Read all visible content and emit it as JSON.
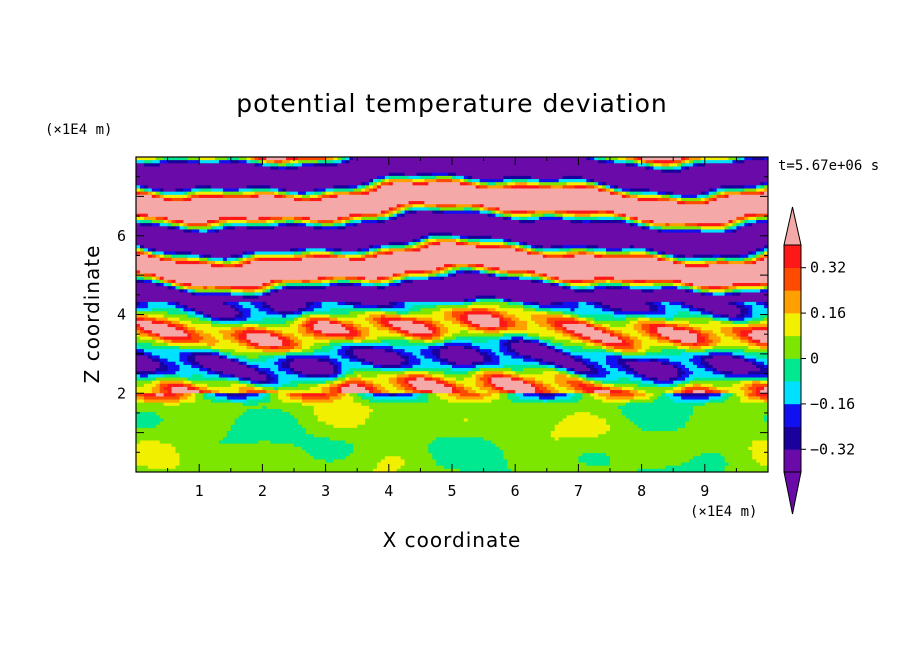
{
  "chart_data": {
    "type": "heatmap",
    "title": "potential temperature deviation",
    "xlabel": "X coordinate",
    "ylabel": "Z coordinate",
    "x_unit": "(×1E4 m)",
    "y_unit": "(×1E4 m)",
    "time_label": "t=5.67e+06 s",
    "xlim": [
      0,
      10
    ],
    "ylim": [
      0,
      8
    ],
    "x_ticks": [
      1,
      2,
      3,
      4,
      5,
      6,
      7,
      8,
      9
    ],
    "y_ticks": [
      2,
      4,
      6
    ],
    "colorbar": {
      "levels": [
        -0.4,
        -0.32,
        -0.24,
        -0.16,
        -0.08,
        0,
        0.08,
        0.16,
        0.24,
        0.32,
        0.4
      ],
      "tick_labels": [
        "0.32",
        "0.16",
        "0",
        "−0.16",
        "−0.32"
      ],
      "tick_values": [
        0.32,
        0.16,
        0,
        -0.16,
        -0.32
      ],
      "colors": [
        "#6a0aa8",
        "#1a009c",
        "#1010f0",
        "#00e0ff",
        "#00e890",
        "#7ce600",
        "#f0f000",
        "#ffa000",
        "#ff4b00",
        "#ff1818"
      ],
      "over_color": "#f4a8a8",
      "under_color": "#6a0aa8",
      "extend": "both"
    },
    "field_description_regions": [
      {
        "z_range": [
          0,
          2
        ],
        "dominant": "near zero (light green / green, values -0.08 to 0.08)"
      },
      {
        "z_range": [
          2,
          4
        ],
        "dominant": "mixed bands, all levels present"
      },
      {
        "z_range": [
          4,
          8
        ],
        "dominant": "alternating bands of > 0.4 and < -0.4"
      }
    ]
  }
}
